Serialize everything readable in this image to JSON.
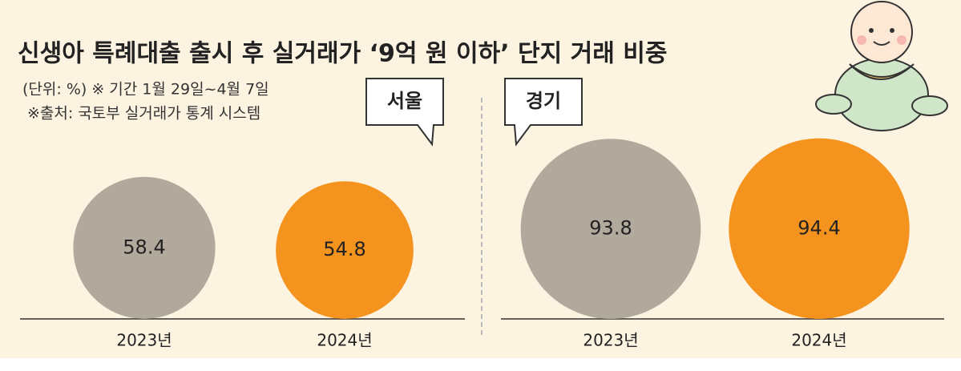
{
  "title": "신생아 특례대출 출시 후 실거래가 ‘9억 원 이하’ 단지 거래 비중",
  "notes": [
    "(단위: %) ※ 기간 1월 29일~4월 7일",
    "※출처: 국토부 실거래가 통계 시스템"
  ],
  "chart_data": [
    {
      "type": "bubble",
      "title": "서울",
      "categories": [
        "2023년",
        "2024년"
      ],
      "values": [
        58.4,
        54.8
      ],
      "colors": [
        "#b1aa9c",
        "#f5931f"
      ]
    },
    {
      "type": "bubble",
      "title": "경기",
      "categories": [
        "2023년",
        "2024년"
      ],
      "values": [
        93.8,
        94.4
      ],
      "colors": [
        "#b1aa9c",
        "#f5931f"
      ]
    }
  ]
}
